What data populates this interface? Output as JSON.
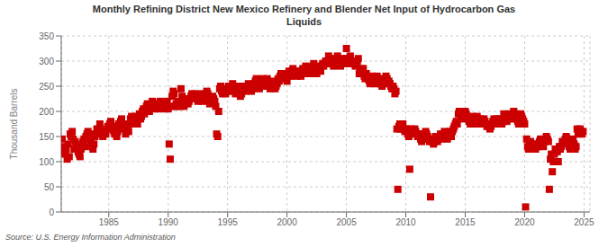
{
  "chart_data": {
    "type": "scatter",
    "title": "Monthly Refining District New Mexico Refinery and Blender Net Input of Hydrocarbon Gas\nLiquids",
    "ylabel": "Thousand Barrels",
    "annotations": [
      "Source: U.S. Energy Information Administration"
    ],
    "color": "#cc0000",
    "marker": "square",
    "grid": true,
    "xlim": [
      1981.0,
      2025.5
    ],
    "ylim": [
      0,
      350
    ],
    "xticks": [
      1985,
      1990,
      1995,
      2000,
      2005,
      2010,
      2015,
      2020,
      2025
    ],
    "yticks": [
      0,
      50,
      100,
      150,
      200,
      250,
      300,
      350
    ],
    "x": [
      1981.08,
      1981.17,
      1981.25,
      1981.33,
      1981.42,
      1981.5,
      1981.58,
      1981.67,
      1981.75,
      1981.83,
      1981.92,
      1982.0,
      1982.08,
      1982.17,
      1982.25,
      1982.33,
      1982.42,
      1982.5,
      1982.58,
      1982.67,
      1982.75,
      1982.83,
      1982.92,
      1983.0,
      1983.08,
      1983.17,
      1983.25,
      1983.33,
      1983.42,
      1983.5,
      1983.58,
      1983.67,
      1983.75,
      1983.83,
      1983.92,
      1984.0,
      1984.08,
      1984.17,
      1984.25,
      1984.33,
      1984.42,
      1984.5,
      1984.58,
      1984.67,
      1984.75,
      1984.83,
      1984.92,
      1985.0,
      1985.08,
      1985.17,
      1985.25,
      1985.33,
      1985.42,
      1985.5,
      1985.58,
      1985.67,
      1985.75,
      1985.83,
      1985.92,
      1986.0,
      1986.08,
      1986.17,
      1986.25,
      1986.33,
      1986.42,
      1986.5,
      1986.58,
      1986.67,
      1986.75,
      1986.83,
      1986.92,
      1987.0,
      1987.08,
      1987.17,
      1987.25,
      1987.33,
      1987.42,
      1987.5,
      1987.58,
      1987.67,
      1987.75,
      1987.83,
      1987.92,
      1988.0,
      1988.08,
      1988.17,
      1988.25,
      1988.33,
      1988.42,
      1988.5,
      1988.58,
      1988.67,
      1988.75,
      1988.83,
      1988.92,
      1989.0,
      1989.08,
      1989.17,
      1989.25,
      1989.33,
      1989.42,
      1989.5,
      1989.58,
      1989.67,
      1989.75,
      1989.83,
      1989.92,
      1990.0,
      1990.08,
      1990.17,
      1990.25,
      1990.33,
      1990.42,
      1990.5,
      1990.58,
      1990.67,
      1990.75,
      1990.83,
      1990.92,
      1991.0,
      1991.08,
      1991.17,
      1991.25,
      1991.33,
      1991.42,
      1991.5,
      1991.58,
      1991.67,
      1991.75,
      1991.83,
      1991.92,
      1992.0,
      1992.08,
      1992.17,
      1992.25,
      1992.33,
      1992.42,
      1992.5,
      1992.58,
      1992.67,
      1992.75,
      1992.83,
      1992.92,
      1993.0,
      1993.08,
      1993.17,
      1993.25,
      1993.33,
      1993.42,
      1993.5,
      1993.58,
      1993.67,
      1993.75,
      1993.83,
      1993.92,
      1994.0,
      1994.08,
      1994.17,
      1994.25,
      1994.33,
      1994.42,
      1994.5,
      1994.58,
      1994.67,
      1994.75,
      1994.83,
      1994.92,
      1995.0,
      1995.08,
      1995.17,
      1995.25,
      1995.33,
      1995.42,
      1995.5,
      1995.58,
      1995.67,
      1995.75,
      1995.83,
      1995.92,
      1996.0,
      1996.08,
      1996.17,
      1996.25,
      1996.33,
      1996.42,
      1996.5,
      1996.58,
      1996.67,
      1996.75,
      1996.83,
      1996.92,
      1997.0,
      1997.08,
      1997.17,
      1997.25,
      1997.33,
      1997.42,
      1997.5,
      1997.58,
      1997.67,
      1997.75,
      1997.83,
      1997.92,
      1998.0,
      1998.08,
      1998.17,
      1998.25,
      1998.33,
      1998.42,
      1998.5,
      1998.58,
      1998.67,
      1998.75,
      1998.83,
      1998.92,
      1999.0,
      1999.08,
      1999.17,
      1999.25,
      1999.33,
      1999.42,
      1999.5,
      1999.58,
      1999.67,
      1999.75,
      1999.83,
      1999.92,
      2000.0,
      2000.08,
      2000.17,
      2000.25,
      2000.33,
      2000.42,
      2000.5,
      2000.58,
      2000.67,
      2000.75,
      2000.83,
      2000.92,
      2001.0,
      2001.08,
      2001.17,
      2001.25,
      2001.33,
      2001.42,
      2001.5,
      2001.58,
      2001.67,
      2001.75,
      2001.83,
      2001.92,
      2002.0,
      2002.08,
      2002.17,
      2002.25,
      2002.33,
      2002.42,
      2002.5,
      2002.58,
      2002.67,
      2002.75,
      2002.83,
      2002.92,
      2003.0,
      2003.08,
      2003.17,
      2003.25,
      2003.33,
      2003.42,
      2003.5,
      2003.58,
      2003.67,
      2003.75,
      2003.83,
      2003.92,
      2004.0,
      2004.08,
      2004.17,
      2004.25,
      2004.33,
      2004.42,
      2004.5,
      2004.58,
      2004.67,
      2004.75,
      2004.83,
      2004.92,
      2005.0,
      2005.08,
      2005.17,
      2005.25,
      2005.33,
      2005.42,
      2005.5,
      2005.58,
      2005.67,
      2005.75,
      2005.83,
      2005.92,
      2006.0,
      2006.08,
      2006.17,
      2006.25,
      2006.33,
      2006.42,
      2006.5,
      2006.58,
      2006.67,
      2006.75,
      2006.83,
      2006.92,
      2007.0,
      2007.08,
      2007.17,
      2007.25,
      2007.33,
      2007.42,
      2007.5,
      2007.58,
      2007.67,
      2007.75,
      2007.83,
      2007.92,
      2008.0,
      2008.08,
      2008.17,
      2008.25,
      2008.33,
      2008.42,
      2008.5,
      2008.58,
      2008.67,
      2008.75,
      2008.83,
      2008.92,
      2009.0,
      2009.08,
      2009.17,
      2009.25,
      2009.33,
      2009.42,
      2009.5,
      2009.58,
      2009.67,
      2009.75,
      2009.83,
      2009.92,
      2010.0,
      2010.08,
      2010.17,
      2010.25,
      2010.33,
      2010.42,
      2010.5,
      2010.58,
      2010.67,
      2010.75,
      2010.83,
      2010.92,
      2011.0,
      2011.08,
      2011.17,
      2011.25,
      2011.33,
      2011.42,
      2011.5,
      2011.58,
      2011.67,
      2011.75,
      2011.83,
      2011.92,
      2012.0,
      2012.08,
      2012.17,
      2012.25,
      2012.33,
      2012.42,
      2012.5,
      2012.58,
      2012.67,
      2012.75,
      2012.83,
      2012.92,
      2013.0,
      2013.08,
      2013.17,
      2013.25,
      2013.33,
      2013.42,
      2013.5,
      2013.58,
      2013.67,
      2013.75,
      2013.83,
      2013.92,
      2014.0,
      2014.08,
      2014.17,
      2014.25,
      2014.33,
      2014.42,
      2014.5,
      2014.58,
      2014.67,
      2014.75,
      2014.83,
      2014.92,
      2015.0,
      2015.08,
      2015.17,
      2015.25,
      2015.33,
      2015.42,
      2015.5,
      2015.58,
      2015.67,
      2015.75,
      2015.83,
      2015.92,
      2016.0,
      2016.08,
      2016.17,
      2016.25,
      2016.33,
      2016.42,
      2016.5,
      2016.58,
      2016.67,
      2016.75,
      2016.83,
      2016.92,
      2017.0,
      2017.08,
      2017.17,
      2017.25,
      2017.33,
      2017.42,
      2017.5,
      2017.58,
      2017.67,
      2017.75,
      2017.83,
      2017.92,
      2018.0,
      2018.08,
      2018.17,
      2018.25,
      2018.33,
      2018.42,
      2018.5,
      2018.58,
      2018.67,
      2018.75,
      2018.83,
      2018.92,
      2019.0,
      2019.08,
      2019.17,
      2019.25,
      2019.33,
      2019.42,
      2019.5,
      2019.58,
      2019.67,
      2019.75,
      2019.83,
      2019.92,
      2020.0,
      2020.08,
      2020.17,
      2020.25,
      2020.33,
      2020.42,
      2020.5,
      2020.58,
      2020.67,
      2020.75,
      2020.83,
      2020.92,
      2021.0,
      2021.08,
      2021.17,
      2021.25,
      2021.33,
      2021.42,
      2021.5,
      2021.58,
      2021.67,
      2021.75,
      2021.83,
      2021.92,
      2022.0,
      2022.08,
      2022.17,
      2022.25,
      2022.33,
      2022.42,
      2022.5,
      2022.58,
      2022.67,
      2022.75,
      2022.83,
      2022.92,
      2023.0,
      2023.08,
      2023.17,
      2023.25,
      2023.33,
      2023.42,
      2023.5,
      2023.58,
      2023.67,
      2023.75,
      2023.83,
      2023.92,
      2024.0,
      2024.08,
      2024.17,
      2024.25,
      2024.33,
      2024.42,
      2024.5,
      2024.58,
      2024.67,
      2024.75,
      2024.83,
      2024.92
    ],
    "values": [
      145,
      120,
      130,
      115,
      125,
      105,
      135,
      110,
      155,
      150,
      160,
      145,
      125,
      140,
      135,
      130,
      120,
      115,
      110,
      125,
      130,
      140,
      145,
      130,
      150,
      155,
      160,
      145,
      155,
      140,
      130,
      125,
      135,
      150,
      155,
      165,
      160,
      165,
      175,
      155,
      160,
      150,
      155,
      160,
      155,
      165,
      170,
      165,
      175,
      180,
      170,
      165,
      160,
      155,
      165,
      150,
      160,
      175,
      170,
      180,
      185,
      175,
      165,
      170,
      155,
      165,
      170,
      160,
      175,
      185,
      190,
      180,
      175,
      185,
      190,
      180,
      175,
      185,
      195,
      185,
      190,
      200,
      205,
      195,
      200,
      210,
      215,
      205,
      200,
      210,
      215,
      220,
      215,
      210,
      205,
      215,
      210,
      205,
      215,
      220,
      210,
      215,
      210,
      205,
      210,
      215,
      220,
      205,
      135,
      105,
      210,
      230,
      240,
      235,
      210,
      215,
      210,
      220,
      215,
      210,
      245,
      230,
      225,
      210,
      215,
      220,
      225,
      215,
      220,
      225,
      230,
      235,
      225,
      230,
      235,
      225,
      230,
      220,
      225,
      230,
      235,
      225,
      220,
      225,
      230,
      235,
      240,
      235,
      225,
      215,
      220,
      225,
      230,
      225,
      220,
      210,
      155,
      150,
      200,
      245,
      250,
      240,
      235,
      245,
      240,
      235,
      240,
      245,
      250,
      245,
      240,
      250,
      255,
      250,
      240,
      235,
      245,
      250,
      245,
      235,
      230,
      235,
      240,
      250,
      245,
      240,
      245,
      250,
      255,
      250,
      245,
      240,
      245,
      250,
      255,
      260,
      265,
      255,
      250,
      245,
      255,
      260,
      265,
      255,
      250,
      255,
      260,
      265,
      255,
      250,
      245,
      255,
      260,
      255,
      250,
      245,
      250,
      255,
      265,
      260,
      270,
      275,
      265,
      270,
      275,
      270,
      265,
      260,
      270,
      280,
      275,
      270,
      280,
      285,
      275,
      280,
      275,
      270,
      275,
      280,
      275,
      270,
      280,
      285,
      275,
      285,
      290,
      280,
      275,
      285,
      280,
      275,
      280,
      290,
      295,
      285,
      280,
      275,
      285,
      290,
      285,
      280,
      290,
      295,
      290,
      295,
      300,
      295,
      300,
      310,
      300,
      295,
      305,
      295,
      290,
      300,
      295,
      305,
      310,
      300,
      295,
      290,
      295,
      300,
      305,
      295,
      305,
      325,
      300,
      295,
      305,
      310,
      300,
      295,
      300,
      295,
      290,
      295,
      300,
      305,
      275,
      280,
      285,
      280,
      285,
      270,
      265,
      275,
      270,
      265,
      260,
      255,
      260,
      270,
      265,
      260,
      255,
      265,
      270,
      265,
      255,
      260,
      255,
      250,
      255,
      265,
      260,
      270,
      265,
      255,
      260,
      255,
      250,
      245,
      250,
      245,
      235,
      240,
      165,
      45,
      170,
      175,
      165,
      170,
      175,
      165,
      160,
      165,
      165,
      155,
      150,
      85,
      160,
      165,
      155,
      160,
      165,
      160,
      155,
      150,
      155,
      150,
      145,
      140,
      155,
      150,
      145,
      160,
      155,
      150,
      145,
      140,
      30,
      145,
      140,
      135,
      140,
      150,
      145,
      140,
      145,
      150,
      155,
      145,
      150,
      155,
      160,
      155,
      150,
      145,
      155,
      160,
      155,
      150,
      160,
      165,
      170,
      175,
      180,
      175,
      195,
      200,
      195,
      190,
      185,
      190,
      195,
      200,
      195,
      190,
      185,
      180,
      175,
      185,
      190,
      185,
      180,
      175,
      185,
      190,
      185,
      175,
      180,
      185,
      180,
      175,
      185,
      180,
      175,
      170,
      175,
      170,
      165,
      170,
      175,
      180,
      185,
      175,
      180,
      185,
      180,
      175,
      185,
      180,
      175,
      180,
      195,
      190,
      185,
      180,
      185,
      195,
      190,
      185,
      190,
      195,
      200,
      195,
      190,
      185,
      180,
      175,
      185,
      195,
      190,
      185,
      180,
      175,
      10,
      145,
      130,
      125,
      135,
      140,
      130,
      125,
      135,
      130,
      125,
      130,
      135,
      130,
      140,
      145,
      140,
      135,
      130,
      140,
      145,
      150,
      145,
      140,
      45,
      105,
      115,
      80,
      100,
      115,
      125,
      120,
      120,
      100,
      130,
      125,
      130,
      140,
      135,
      140,
      145,
      150,
      145,
      140,
      130,
      125,
      130,
      140,
      145,
      135,
      125,
      130,
      165,
      155,
      160,
      165,
      160,
      155,
      160
    ]
  }
}
